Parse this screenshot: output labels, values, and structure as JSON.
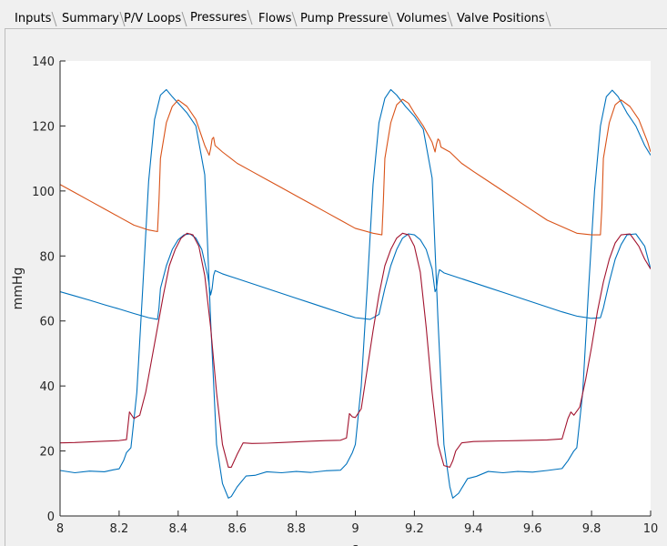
{
  "tabs": [
    {
      "label": "Inputs",
      "active": false
    },
    {
      "label": "Summary",
      "active": false
    },
    {
      "label": "P/V Loops",
      "active": false
    },
    {
      "label": "Pressures",
      "active": true
    },
    {
      "label": "Flows",
      "active": false
    },
    {
      "label": "Pump Pressure",
      "active": false
    },
    {
      "label": "Volumes",
      "active": false
    },
    {
      "label": "Valve Positions",
      "active": false
    }
  ],
  "chart_data": {
    "type": "line",
    "title": "",
    "xlabel": "s",
    "ylabel": "mmHg",
    "xlim": [
      8,
      10
    ],
    "ylim": [
      0,
      140
    ],
    "xticks": [
      8,
      8.2,
      8.4,
      8.6,
      8.8,
      9,
      9.2,
      9.4,
      9.6,
      9.8,
      10
    ],
    "xtick_labels": [
      "8",
      "8.2",
      "8.4",
      "8.6",
      "8.8",
      "9",
      "9.2",
      "9.4",
      "9.6",
      "9.8",
      "10"
    ],
    "yticks": [
      0,
      20,
      40,
      60,
      80,
      100,
      120,
      140
    ],
    "ytick_labels": [
      "0",
      "20",
      "40",
      "60",
      "80",
      "100",
      "120",
      "140"
    ],
    "grid": false,
    "legend": "none",
    "series": [
      {
        "color": "#0072BD",
        "x": [
          8,
          8.05,
          8.1,
          8.15,
          8.18,
          8.2,
          8.215,
          8.225,
          8.24,
          8.26,
          8.28,
          8.3,
          8.32,
          8.34,
          8.36,
          8.38,
          8.4,
          8.43,
          8.46,
          8.49,
          8.51,
          8.53,
          8.55,
          8.57,
          8.58,
          8.6,
          8.63,
          8.66,
          8.7,
          8.75,
          8.8,
          8.85,
          8.9,
          8.95,
          8.97,
          8.99,
          9.0,
          9.02,
          9.04,
          9.06,
          9.08,
          9.1,
          9.12,
          9.14,
          9.17,
          9.2,
          9.23,
          9.26,
          9.28,
          9.3,
          9.32,
          9.33,
          9.35,
          9.38,
          9.41,
          9.45,
          9.5,
          9.55,
          9.6,
          9.65,
          9.7,
          9.72,
          9.74,
          9.75,
          9.77,
          9.79,
          9.81,
          9.83,
          9.85,
          9.87,
          9.89,
          9.92,
          9.95,
          9.98,
          10.0
        ],
        "y": [
          14,
          13.3,
          13.8,
          13.6,
          14.2,
          14.5,
          17,
          19.5,
          21,
          38,
          70,
          103,
          122,
          129.5,
          131.2,
          129,
          127,
          124,
          120,
          105,
          60,
          22,
          10,
          5.5,
          6,
          9,
          12.3,
          12.5,
          13.6,
          13.3,
          13.7,
          13.4,
          13.9,
          14.1,
          16,
          19.5,
          22,
          40,
          70,
          102,
          121,
          128.5,
          131.2,
          129.5,
          126,
          123,
          119,
          104,
          60,
          22,
          9,
          5.5,
          7,
          11.5,
          12.2,
          13.7,
          13.3,
          13.7,
          13.5,
          14,
          14.6,
          17,
          20,
          21,
          38,
          70,
          100,
          120,
          129,
          131,
          129,
          124,
          120,
          114,
          111
        ]
      },
      {
        "color": "#D95319",
        "x": [
          8,
          8.05,
          8.1,
          8.15,
          8.2,
          8.25,
          8.3,
          8.33,
          8.335,
          8.34,
          8.36,
          8.38,
          8.4,
          8.43,
          8.46,
          8.49,
          8.505,
          8.51,
          8.515,
          8.52,
          8.525,
          8.55,
          8.6,
          8.65,
          8.7,
          8.75,
          8.8,
          8.85,
          8.9,
          8.95,
          9.0,
          9.06,
          9.09,
          9.095,
          9.1,
          9.12,
          9.14,
          9.16,
          9.18,
          9.2,
          9.23,
          9.26,
          9.27,
          9.275,
          9.28,
          9.285,
          9.29,
          9.32,
          9.36,
          9.4,
          9.45,
          9.5,
          9.55,
          9.6,
          9.65,
          9.7,
          9.75,
          9.8,
          9.83,
          9.835,
          9.84,
          9.86,
          9.88,
          9.9,
          9.93,
          9.96,
          9.99,
          10.0
        ],
        "y": [
          102,
          99.5,
          97,
          94.5,
          92,
          89.5,
          88,
          87.5,
          97,
          110,
          121,
          126,
          128,
          126,
          122,
          114,
          111,
          113,
          116,
          116.5,
          114,
          112,
          108.5,
          106,
          103.5,
          101,
          98.5,
          96,
          93.5,
          91,
          88.5,
          87,
          86.5,
          97,
          110,
          121,
          126.5,
          128.2,
          127,
          124,
          120,
          115,
          112,
          114.5,
          116,
          115.5,
          113.5,
          112,
          108.5,
          106,
          103,
          100,
          97,
          94,
          91,
          89,
          87,
          86.5,
          86.5,
          95,
          110,
          121,
          126.5,
          128,
          126,
          122,
          115,
          112
        ]
      },
      {
        "color": "#0072BD",
        "x": [
          8,
          8.05,
          8.1,
          8.15,
          8.2,
          8.25,
          8.3,
          8.33,
          8.335,
          8.34,
          8.36,
          8.38,
          8.4,
          8.42,
          8.44,
          8.46,
          8.48,
          8.5,
          8.51,
          8.515,
          8.52,
          8.525,
          8.55,
          8.6,
          8.65,
          8.7,
          8.75,
          8.8,
          8.85,
          8.9,
          8.95,
          9.0,
          9.05,
          9.08,
          9.1,
          9.12,
          9.14,
          9.16,
          9.18,
          9.2,
          9.22,
          9.24,
          9.26,
          9.27,
          9.275,
          9.28,
          9.285,
          9.3,
          9.35,
          9.4,
          9.45,
          9.5,
          9.55,
          9.6,
          9.65,
          9.7,
          9.75,
          9.8,
          9.83,
          9.84,
          9.86,
          9.88,
          9.9,
          9.92,
          9.95,
          9.98,
          10.0
        ],
        "y": [
          69,
          67.7,
          66.4,
          65,
          63.7,
          62.3,
          61,
          60.5,
          64,
          70,
          77,
          82,
          85,
          86.5,
          86.8,
          85.5,
          82,
          74,
          68,
          70,
          74,
          75.5,
          74.5,
          73,
          71.5,
          70,
          68.5,
          67,
          65.5,
          64,
          62.5,
          61,
          60.5,
          62,
          70,
          77,
          82,
          85.5,
          86.8,
          86.5,
          85,
          82,
          76,
          69,
          70,
          74,
          75.8,
          74.8,
          73.3,
          71.8,
          70.3,
          68.8,
          67.3,
          65.8,
          64.3,
          62.8,
          61.5,
          60.8,
          61,
          64,
          72,
          79,
          83.5,
          86.5,
          86.8,
          83,
          76
        ]
      },
      {
        "color": "#A2142F",
        "x": [
          8,
          8.05,
          8.1,
          8.15,
          8.2,
          8.225,
          8.235,
          8.25,
          8.27,
          8.29,
          8.31,
          8.33,
          8.35,
          8.37,
          8.39,
          8.41,
          8.43,
          8.45,
          8.47,
          8.49,
          8.51,
          8.53,
          8.55,
          8.57,
          8.58,
          8.6,
          8.62,
          8.65,
          8.7,
          8.75,
          8.8,
          8.85,
          8.9,
          8.95,
          8.97,
          8.98,
          8.99,
          9.0,
          9.02,
          9.04,
          9.06,
          9.08,
          9.1,
          9.12,
          9.14,
          9.16,
          9.18,
          9.2,
          9.22,
          9.24,
          9.26,
          9.28,
          9.3,
          9.32,
          9.33,
          9.34,
          9.36,
          9.38,
          9.4,
          9.45,
          9.5,
          9.55,
          9.6,
          9.65,
          9.7,
          9.72,
          9.73,
          9.74,
          9.76,
          9.78,
          9.8,
          9.82,
          9.84,
          9.86,
          9.88,
          9.9,
          9.93,
          9.96,
          9.98,
          10.0
        ],
        "y": [
          22.5,
          22.6,
          22.8,
          23,
          23.2,
          23.5,
          32,
          30,
          31,
          38,
          48,
          58,
          68,
          77,
          82,
          85.5,
          87,
          86.5,
          83,
          74,
          58,
          38,
          22,
          15,
          15,
          19,
          22.5,
          22.3,
          22.4,
          22.6,
          22.8,
          23,
          23.2,
          23.3,
          24,
          31.5,
          30.5,
          30.3,
          33,
          45,
          57,
          68,
          77,
          82,
          85.5,
          87,
          86.5,
          83,
          75,
          58,
          38,
          22,
          15.5,
          15,
          17,
          20,
          22.5,
          22.7,
          22.9,
          23,
          23.1,
          23.2,
          23.3,
          23.4,
          23.7,
          30,
          32,
          31,
          33.5,
          42,
          52,
          63,
          72,
          79,
          84,
          86.5,
          86.8,
          83,
          79,
          76
        ]
      }
    ]
  }
}
